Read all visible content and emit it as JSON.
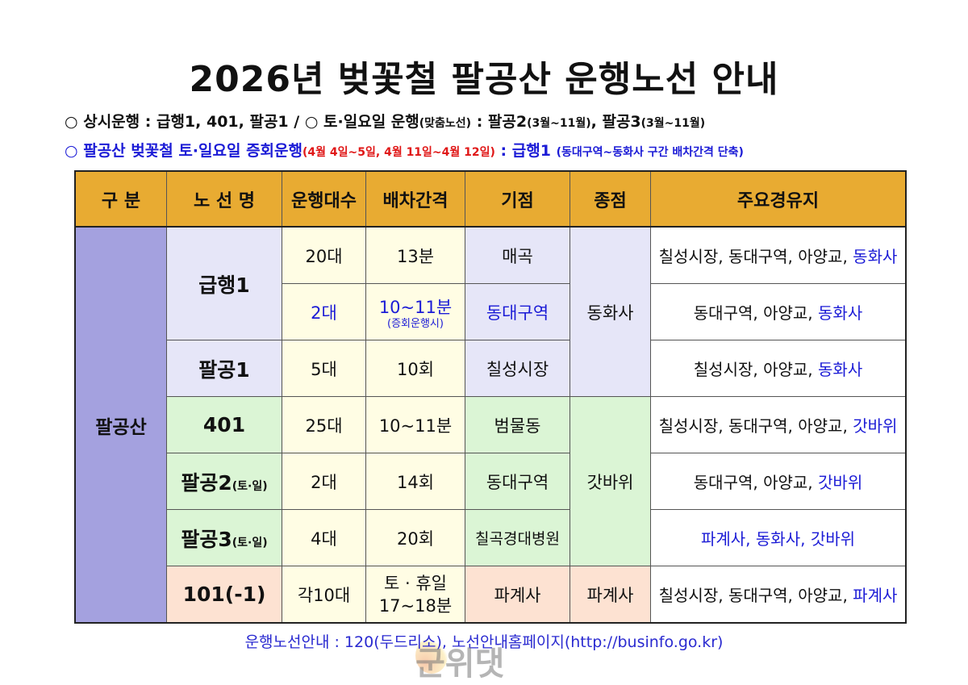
{
  "title": "2026년 벚꽃철 팔공산 운행노선 안내",
  "notes": {
    "line1": {
      "bullet": "○",
      "label": "상시운행 : 급행1, 401, 팔공1",
      "sep": " / ",
      "bullet2": "○",
      "weekend": "토·일요일 운행",
      "weekend_sub": "(맞춤노선)",
      "colon": " : ",
      "r1": "팔공2",
      "r1_sub": "(3월~11월)",
      "comma": ", ",
      "r2": "팔공3",
      "r2_sub": "(3월~11월)"
    },
    "line2": {
      "bullet": "○",
      "label": "팔공산 벚꽃철 토·일요일 증회운행",
      "dates": "(4월 4일~5일, 4월 11일~4월 12일)",
      "colon": " : ",
      "route": "급행1",
      "desc": "(동대구역~동화사 구간 배차간격 단축)"
    }
  },
  "colors": {
    "header": "#e8ab32",
    "group": "#a4a1df",
    "donghwasa_rows": "#e6e6f8",
    "gatbawi_rows": "#dbf5d5",
    "row_101": "#fde2d2",
    "count_interval": "#fffde4",
    "highlight": "#1b1bd6",
    "dates": "#e01818"
  },
  "table": {
    "headers": [
      "구 분",
      "노 선 명",
      "운행대수",
      "배차간격",
      "기점",
      "종점",
      "주요경유지"
    ],
    "group": "팔공산",
    "rows": [
      {
        "route": "급행1",
        "count": "20대",
        "interval": "13분",
        "start": "매곡",
        "end": "동화사",
        "via": "칠성시장, 동대구역, 아양교, ",
        "via_hl": "동화사"
      },
      {
        "route": "",
        "count": "2대",
        "interval": "10~11분",
        "interval_sub": "(증회운행시)",
        "start": "동대구역",
        "via": "동대구역, 아양교, ",
        "via_hl": "동화사"
      },
      {
        "route": "팔공1",
        "count": "5대",
        "interval": "10회",
        "start": "칠성시장",
        "via": "칠성시장, 아양교, ",
        "via_hl": "동화사"
      },
      {
        "route": "401",
        "count": "25대",
        "interval": "10~11분",
        "start": "범물동",
        "end": "갓바위",
        "via": "칠성시장, 동대구역, 아양교, ",
        "via_hl": "갓바위"
      },
      {
        "route": "팔공2",
        "route_sub": "(토·일)",
        "count": "2대",
        "interval": "14회",
        "start": "동대구역",
        "via": "동대구역, 아양교, ",
        "via_hl": "갓바위"
      },
      {
        "route": "팔공3",
        "route_sub": "(토·일)",
        "count": "4대",
        "interval": "20회",
        "start": "칠곡경대병원",
        "via": "",
        "via_hl": "파계사, 동화사, 갓바위"
      },
      {
        "route": "101(-1)",
        "count": "각10대",
        "interval": "토 · 휴일",
        "interval_sub": "17~18분",
        "start": "파계사",
        "end": "파계사",
        "via": "칠성시장, 동대구역, 아양교, ",
        "via_hl": "파계사"
      }
    ]
  },
  "footer": "운행노선안내 : 120(두드리소), 노선안내홈페이지(http://businfo.go.kr)",
  "watermark": "군위댓"
}
